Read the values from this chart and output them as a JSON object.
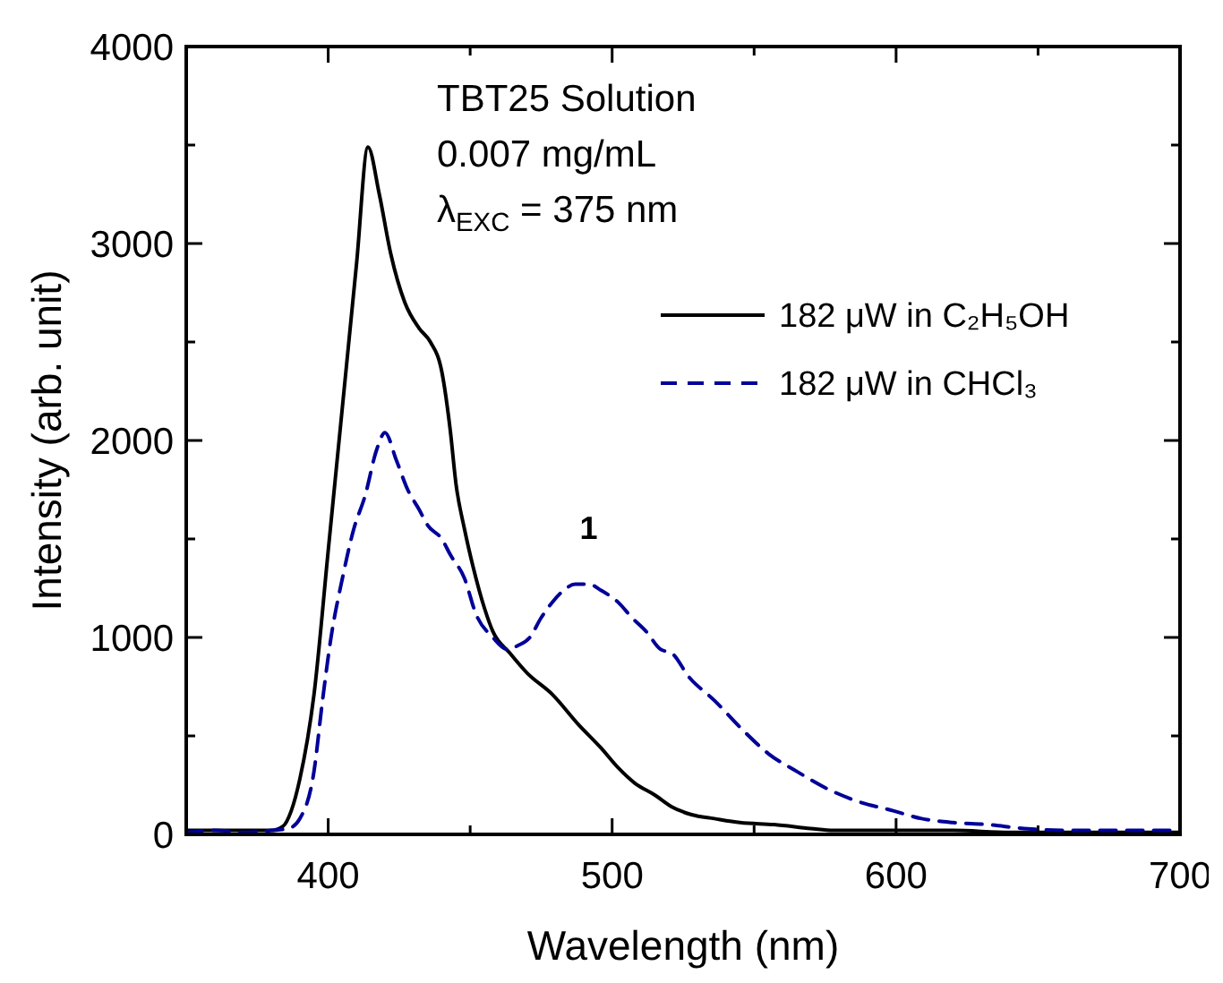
{
  "chart_data": {
    "type": "line",
    "xlabel": "Wavelength (nm)",
    "ylabel": "Intensity (arb. unit)",
    "xlim": [
      350,
      700
    ],
    "ylim": [
      0,
      4000
    ],
    "xticks": [
      400,
      {
        "value": 450,
        "label": null
      },
      500,
      {
        "value": 550,
        "label": null
      },
      600,
      {
        "value": 650,
        "label": null
      },
      700
    ],
    "yticks": [
      0,
      {
        "value": 500,
        "label": null
      },
      1000,
      {
        "value": 1500,
        "label": null
      },
      2000,
      {
        "value": 2500,
        "label": null
      },
      3000,
      {
        "value": 3500,
        "label": null
      },
      4000
    ],
    "grid": false,
    "legend": "top right",
    "annotations": [
      "TBT25 Solution",
      "0.007 mg/mL",
      "λ$_{EXC}$ = 375 nm",
      "1"
    ],
    "series": [
      {
        "name": "182 μW in C₂H₅OH",
        "color": "#000000",
        "line_style": "solid",
        "x": [
          350,
          360,
          370,
          380,
          384,
          387,
          390,
          395,
          400,
          405,
          410,
          414,
          418,
          422,
          427,
          432,
          436,
          440,
          443,
          445,
          448,
          451,
          455,
          458,
          464,
          470,
          479,
          488,
          496,
          502,
          508,
          515,
          521,
          528,
          536,
          545,
          557,
          570,
          578,
          590,
          600,
          620,
          640,
          660,
          680,
          700
        ],
        "values": [
          20,
          20,
          20,
          20,
          40,
          120,
          280,
          710,
          1440,
          2170,
          2900,
          3490,
          3250,
          2950,
          2700,
          2570,
          2500,
          2350,
          2050,
          1780,
          1550,
          1360,
          1150,
          1030,
          920,
          820,
          710,
          560,
          440,
          340,
          260,
          200,
          140,
          100,
          80,
          60,
          50,
          30,
          20,
          20,
          20,
          20,
          10,
          10,
          10,
          10
        ]
      },
      {
        "name": "182 μW in CHCl₃",
        "color": "#000099",
        "line_style": "dashed",
        "x": [
          350,
          360,
          370,
          380,
          386,
          390,
          395,
          398,
          401,
          405,
          409,
          413,
          417,
          420,
          424,
          428,
          432,
          435,
          440,
          443,
          448,
          452,
          458,
          463,
          467,
          471,
          475,
          479,
          483,
          487,
          492,
          496,
          502,
          507,
          512,
          517,
          521,
          527,
          536,
          546,
          555,
          565,
          576,
          586,
          599,
          609,
          620,
          632,
          645,
          660,
          680,
          700
        ],
        "values": [
          10,
          20,
          10,
          20,
          30,
          80,
          320,
          680,
          1000,
          1300,
          1550,
          1720,
          1950,
          2040,
          1900,
          1750,
          1650,
          1570,
          1500,
          1420,
          1300,
          1120,
          1000,
          940,
          960,
          1000,
          1100,
          1180,
          1240,
          1270,
          1270,
          1240,
          1180,
          1100,
          1030,
          940,
          920,
          800,
          680,
          530,
          410,
          320,
          230,
          170,
          120,
          80,
          60,
          50,
          30,
          20,
          20,
          20
        ]
      }
    ]
  }
}
